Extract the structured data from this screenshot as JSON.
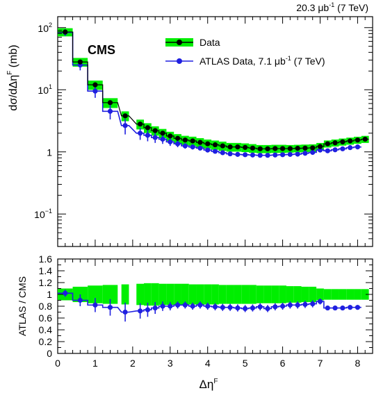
{
  "header": {
    "lumi_text": "20.3 μb",
    "lumi_sup": "-1",
    "lumi_suffix": " (7 TeV)"
  },
  "colors": {
    "data_band": "#00ee00",
    "data_marker": "#000000",
    "atlas": "#1f1fe0"
  },
  "chart_data": [
    {
      "type": "line",
      "label": "CMS",
      "ylabel": "dσ/dΔη",
      "ylabel_sup": "F",
      "ylabel_unit": " (mb)",
      "yscale": "log",
      "ylim": [
        0.03,
        150
      ],
      "xlim": [
        0,
        8.4
      ],
      "xticks": [
        0,
        1,
        2,
        3,
        4,
        5,
        6,
        7,
        8
      ],
      "yticks": [
        {
          "value": 100,
          "base": "10",
          "exp": "2"
        },
        {
          "value": 10,
          "base": "10",
          "exp": "1"
        },
        {
          "value": 1,
          "base": "1",
          "exp": ""
        },
        {
          "value": 0.1,
          "base": "10",
          "exp": "−1"
        }
      ],
      "legend": [
        {
          "label": "Data",
          "sup": "",
          "suffix": ""
        },
        {
          "label": "ATLAS Data, 7.1 μb",
          "sup": "-1",
          "suffix": " (7 TeV)"
        }
      ],
      "series": [
        {
          "name": "Data",
          "x": [
            0.2,
            0.6,
            1.0,
            1.4,
            1.8,
            2.2,
            2.4,
            2.6,
            2.8,
            3.0,
            3.2,
            3.4,
            3.6,
            3.8,
            4.0,
            4.2,
            4.4,
            4.6,
            4.8,
            5.0,
            5.2,
            5.4,
            5.6,
            5.8,
            6.0,
            6.2,
            6.4,
            6.6,
            6.8,
            7.0,
            7.2,
            7.4,
            7.6,
            7.8,
            8.0,
            8.2
          ],
          "y": [
            85,
            28,
            12,
            6.2,
            3.8,
            2.8,
            2.45,
            2.2,
            2.0,
            1.8,
            1.65,
            1.55,
            1.5,
            1.42,
            1.35,
            1.3,
            1.25,
            1.2,
            1.2,
            1.18,
            1.15,
            1.12,
            1.12,
            1.13,
            1.13,
            1.13,
            1.14,
            1.15,
            1.16,
            1.22,
            1.35,
            1.4,
            1.45,
            1.5,
            1.55,
            1.6
          ],
          "rel_err": [
            0.15,
            0.16,
            0.17,
            0.18,
            0.18,
            0.18,
            0.18,
            0.17,
            0.17,
            0.17,
            0.17,
            0.17,
            0.17,
            0.17,
            0.17,
            0.17,
            0.17,
            0.16,
            0.16,
            0.16,
            0.16,
            0.15,
            0.15,
            0.15,
            0.15,
            0.14,
            0.14,
            0.14,
            0.14,
            0.14,
            0.13,
            0.13,
            0.13,
            0.13,
            0.13,
            0.13
          ]
        },
        {
          "name": "ATLAS Data, 7.1 μb-1 (7 TeV)",
          "x": [
            0.2,
            0.6,
            1.0,
            1.4,
            1.8,
            2.2,
            2.4,
            2.6,
            2.8,
            3.0,
            3.2,
            3.4,
            3.6,
            3.8,
            4.0,
            4.2,
            4.4,
            4.6,
            4.8,
            5.0,
            5.2,
            5.4,
            5.6,
            5.8,
            6.0,
            6.2,
            6.4,
            6.6,
            6.8,
            7.0,
            7.2,
            7.4,
            7.6,
            7.8,
            8.0
          ],
          "y": [
            84,
            25,
            9.5,
            4.5,
            2.65,
            2.0,
            1.85,
            1.7,
            1.6,
            1.45,
            1.35,
            1.25,
            1.2,
            1.15,
            1.07,
            1.02,
            0.97,
            0.93,
            0.91,
            0.9,
            0.89,
            0.88,
            0.88,
            0.89,
            0.9,
            0.91,
            0.92,
            0.95,
            0.98,
            1.07,
            1.04,
            1.08,
            1.12,
            1.17,
            1.2
          ],
          "rel_err": [
            0.12,
            0.18,
            0.22,
            0.26,
            0.28,
            0.22,
            0.2,
            0.18,
            0.16,
            0.14,
            0.12,
            0.1,
            0.09,
            0.08,
            0.08,
            0.08,
            0.07,
            0.07,
            0.07,
            0.07,
            0.07,
            0.07,
            0.07,
            0.07,
            0.07,
            0.07,
            0.07,
            0.07,
            0.07,
            0.07,
            0.06,
            0.06,
            0.06,
            0.06,
            0.06
          ]
        }
      ]
    },
    {
      "type": "line",
      "ylabel": "ATLAS / CMS",
      "xlabel": "Δη",
      "xlabel_sup": "F",
      "xlim": [
        0,
        8.4
      ],
      "ylim": [
        0,
        1.6
      ],
      "xticks": [
        0,
        1,
        2,
        3,
        4,
        5,
        6,
        7,
        8
      ],
      "yticks": [
        0,
        0.2,
        0.4,
        0.6,
        0.8,
        1,
        1.2,
        1.4,
        1.6
      ],
      "series": [
        {
          "name": "CMS uncertainty band",
          "x": [
            0.2,
            0.6,
            1.0,
            1.4,
            1.8,
            2.2,
            2.4,
            2.6,
            2.8,
            3.0,
            3.2,
            3.4,
            3.6,
            3.8,
            4.0,
            4.2,
            4.4,
            4.6,
            4.8,
            5.0,
            5.2,
            5.4,
            5.6,
            5.8,
            6.0,
            6.2,
            6.4,
            6.6,
            6.8,
            7.0,
            7.2,
            7.4,
            7.6,
            7.8,
            8.0,
            8.2
          ],
          "y": [
            1,
            1,
            1,
            1,
            1,
            1,
            1,
            1,
            1,
            1,
            1,
            1,
            1,
            1,
            1,
            1,
            1,
            1,
            1,
            1,
            1,
            1,
            1,
            1,
            1,
            1,
            1,
            1,
            1,
            1,
            1,
            1,
            1,
            1,
            1,
            1
          ],
          "rel_err": [
            0.1,
            0.13,
            0.15,
            0.16,
            0.17,
            0.18,
            0.19,
            0.19,
            0.18,
            0.18,
            0.18,
            0.18,
            0.17,
            0.17,
            0.17,
            0.17,
            0.16,
            0.16,
            0.16,
            0.16,
            0.16,
            0.15,
            0.15,
            0.15,
            0.15,
            0.14,
            0.14,
            0.13,
            0.13,
            0.1,
            0.09,
            0.09,
            0.09,
            0.09,
            0.09,
            0.09
          ]
        },
        {
          "name": "ATLAS / CMS",
          "x": [
            0.2,
            0.6,
            1.0,
            1.4,
            1.8,
            2.2,
            2.4,
            2.6,
            2.8,
            3.0,
            3.2,
            3.4,
            3.6,
            3.8,
            4.0,
            4.2,
            4.4,
            4.6,
            4.8,
            5.0,
            5.2,
            5.4,
            5.6,
            5.8,
            6.0,
            6.2,
            6.4,
            6.6,
            6.8,
            7.0,
            7.2,
            7.4,
            7.6,
            7.8,
            8.0
          ],
          "y": [
            1.02,
            0.9,
            0.82,
            0.78,
            0.7,
            0.72,
            0.74,
            0.77,
            0.8,
            0.8,
            0.82,
            0.82,
            0.8,
            0.82,
            0.8,
            0.79,
            0.78,
            0.78,
            0.77,
            0.76,
            0.77,
            0.79,
            0.76,
            0.79,
            0.8,
            0.82,
            0.82,
            0.83,
            0.84,
            0.88,
            0.77,
            0.77,
            0.77,
            0.78,
            0.78
          ],
          "err": [
            0.06,
            0.1,
            0.12,
            0.14,
            0.16,
            0.13,
            0.12,
            0.1,
            0.08,
            0.07,
            0.06,
            0.06,
            0.06,
            0.06,
            0.06,
            0.06,
            0.06,
            0.06,
            0.06,
            0.06,
            0.06,
            0.06,
            0.06,
            0.06,
            0.06,
            0.06,
            0.06,
            0.06,
            0.06,
            0.05,
            0.04,
            0.04,
            0.04,
            0.04,
            0.04
          ]
        }
      ]
    }
  ]
}
